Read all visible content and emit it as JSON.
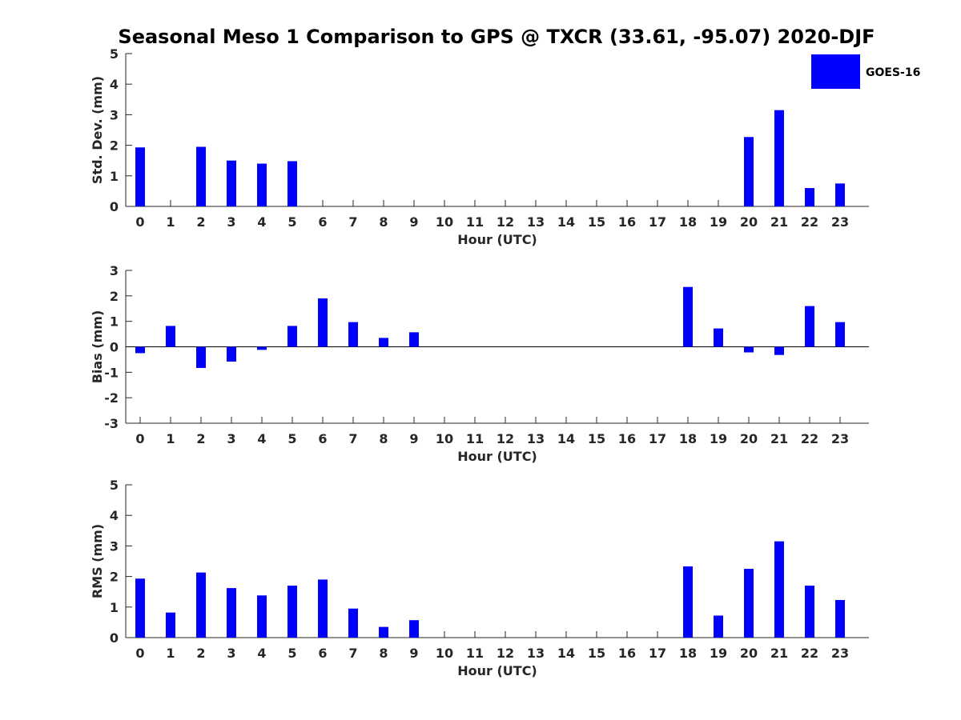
{
  "figure": {
    "title": "Seasonal Meso 1 Comparison to GPS @ TXCR (33.61, -95.07) 2020-DJF",
    "legend": {
      "label": "GOES-16",
      "color": "#0000ff",
      "placement": "top-right"
    }
  },
  "chart_data": [
    {
      "type": "bar",
      "ylabel": "Std. Dev. (mm)",
      "xlabel": "Hour (UTC)",
      "ylim": [
        0,
        5
      ],
      "yticks": [
        0,
        1,
        2,
        3,
        4,
        5
      ],
      "categories": [
        "0",
        "1",
        "2",
        "3",
        "4",
        "5",
        "6",
        "7",
        "8",
        "9",
        "10",
        "11",
        "12",
        "13",
        "14",
        "15",
        "16",
        "17",
        "18",
        "19",
        "20",
        "21",
        "22",
        "23"
      ],
      "series": [
        {
          "name": "GOES-16",
          "color": "#0000ff",
          "values": [
            1.93,
            0,
            1.95,
            1.5,
            1.4,
            1.48,
            0,
            0,
            0,
            0,
            0,
            0,
            0,
            0,
            0,
            0,
            0,
            0,
            0,
            0,
            2.27,
            3.15,
            0.6,
            0.75
          ]
        }
      ]
    },
    {
      "type": "bar",
      "ylabel": "Bias (mm)",
      "xlabel": "Hour (UTC)",
      "ylim": [
        -3,
        3
      ],
      "yticks": [
        -3,
        -2,
        -1,
        0,
        1,
        2,
        3
      ],
      "categories": [
        "0",
        "1",
        "2",
        "3",
        "4",
        "5",
        "6",
        "7",
        "8",
        "9",
        "10",
        "11",
        "12",
        "13",
        "14",
        "15",
        "16",
        "17",
        "18",
        "19",
        "20",
        "21",
        "22",
        "23"
      ],
      "series": [
        {
          "name": "GOES-16",
          "color": "#0000ff",
          "values": [
            -0.25,
            0.82,
            -0.83,
            -0.58,
            -0.12,
            0.82,
            1.9,
            0.97,
            0.35,
            0.57,
            0,
            0,
            0,
            0,
            0,
            0,
            0,
            0,
            2.35,
            0.72,
            -0.22,
            -0.32,
            1.6,
            0.97
          ]
        }
      ]
    },
    {
      "type": "bar",
      "ylabel": "RMS (mm)",
      "xlabel": "Hour (UTC)",
      "ylim": [
        0,
        5
      ],
      "yticks": [
        0,
        1,
        2,
        3,
        4,
        5
      ],
      "categories": [
        "0",
        "1",
        "2",
        "3",
        "4",
        "5",
        "6",
        "7",
        "8",
        "9",
        "10",
        "11",
        "12",
        "13",
        "14",
        "15",
        "16",
        "17",
        "18",
        "19",
        "20",
        "21",
        "22",
        "23"
      ],
      "series": [
        {
          "name": "GOES-16",
          "color": "#0000ff",
          "values": [
            1.93,
            0.82,
            2.13,
            1.62,
            1.38,
            1.7,
            1.9,
            0.95,
            0.35,
            0.57,
            0,
            0,
            0,
            0,
            0,
            0,
            0,
            0,
            2.33,
            0.72,
            2.25,
            3.15,
            1.7,
            1.23
          ]
        }
      ]
    }
  ]
}
